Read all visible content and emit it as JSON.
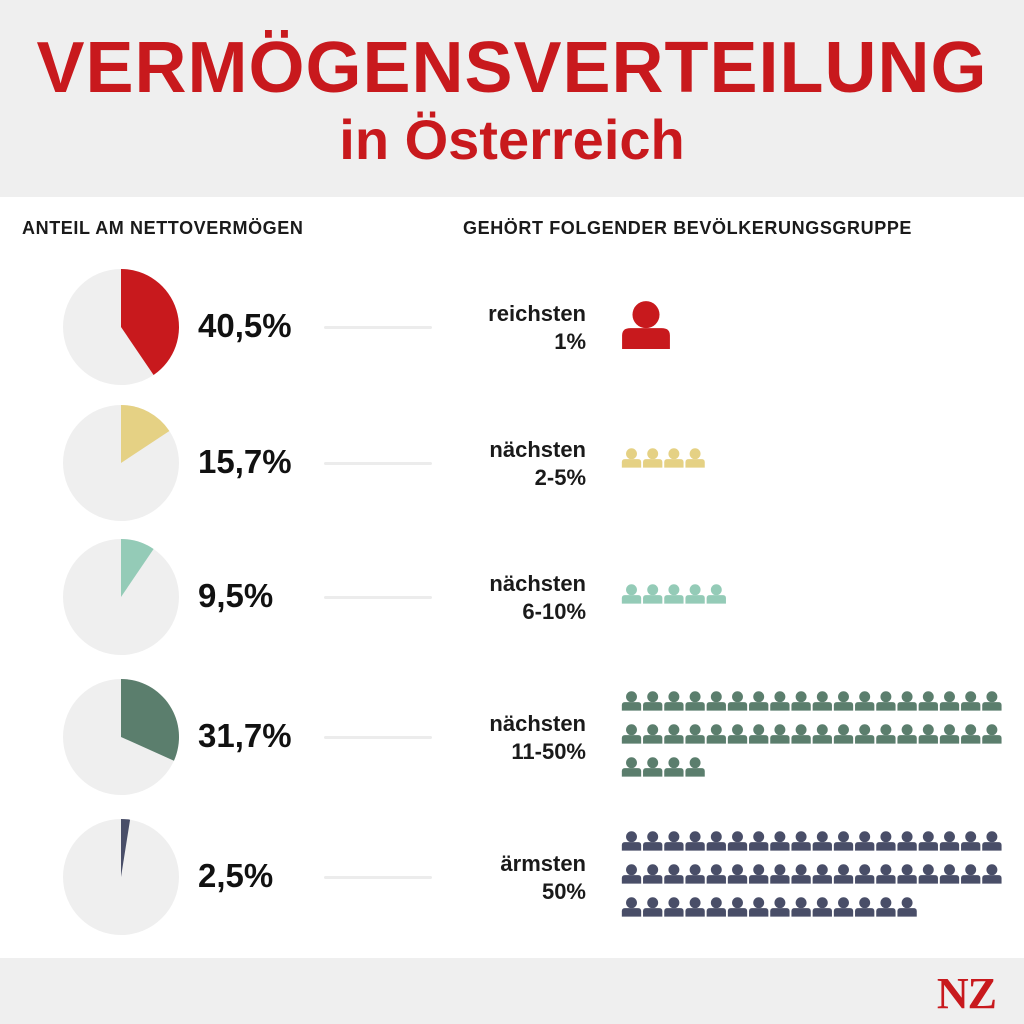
{
  "header": {
    "title": "VERMÖGENSVERTEILUNG",
    "subtitle": "in Österreich"
  },
  "columns": {
    "left": "ANTEIL AM NETTOVERMÖGEN",
    "right": "GEHÖRT FOLGENDER BEVÖLKERUNGSGRUPPE"
  },
  "colors": {
    "track": "#efefef",
    "title": "#c8191d",
    "groups": [
      "#c8191d",
      "#e5d184",
      "#94cbb7",
      "#5b7e6d",
      "#494e68"
    ]
  },
  "chart_data": {
    "type": "pie",
    "title": "VERMÖGENSVERTEILUNG in Österreich",
    "categories": [
      "reichsten 1%",
      "nächsten 2-5%",
      "nächsten 6-10%",
      "nächsten 11-50%",
      "ärmsten 50%"
    ],
    "values": [
      40.5,
      15.7,
      9.5,
      31.7,
      2.5
    ],
    "unit": "%",
    "people_icons": [
      1,
      4,
      5,
      40,
      50
    ]
  },
  "rows": [
    {
      "value_label": "40,5%",
      "group_line1": "reichsten",
      "group_line2": "1%"
    },
    {
      "value_label": "15,7%",
      "group_line1": "nächsten",
      "group_line2": "2-5%"
    },
    {
      "value_label": "9,5%",
      "group_line1": "nächsten",
      "group_line2": "6-10%"
    },
    {
      "value_label": "31,7%",
      "group_line1": "nächsten",
      "group_line2": "11-50%"
    },
    {
      "value_label": "2,5%",
      "group_line1": "ärmsten",
      "group_line2": "50%"
    }
  ],
  "footer": {
    "logo": "NZ"
  }
}
